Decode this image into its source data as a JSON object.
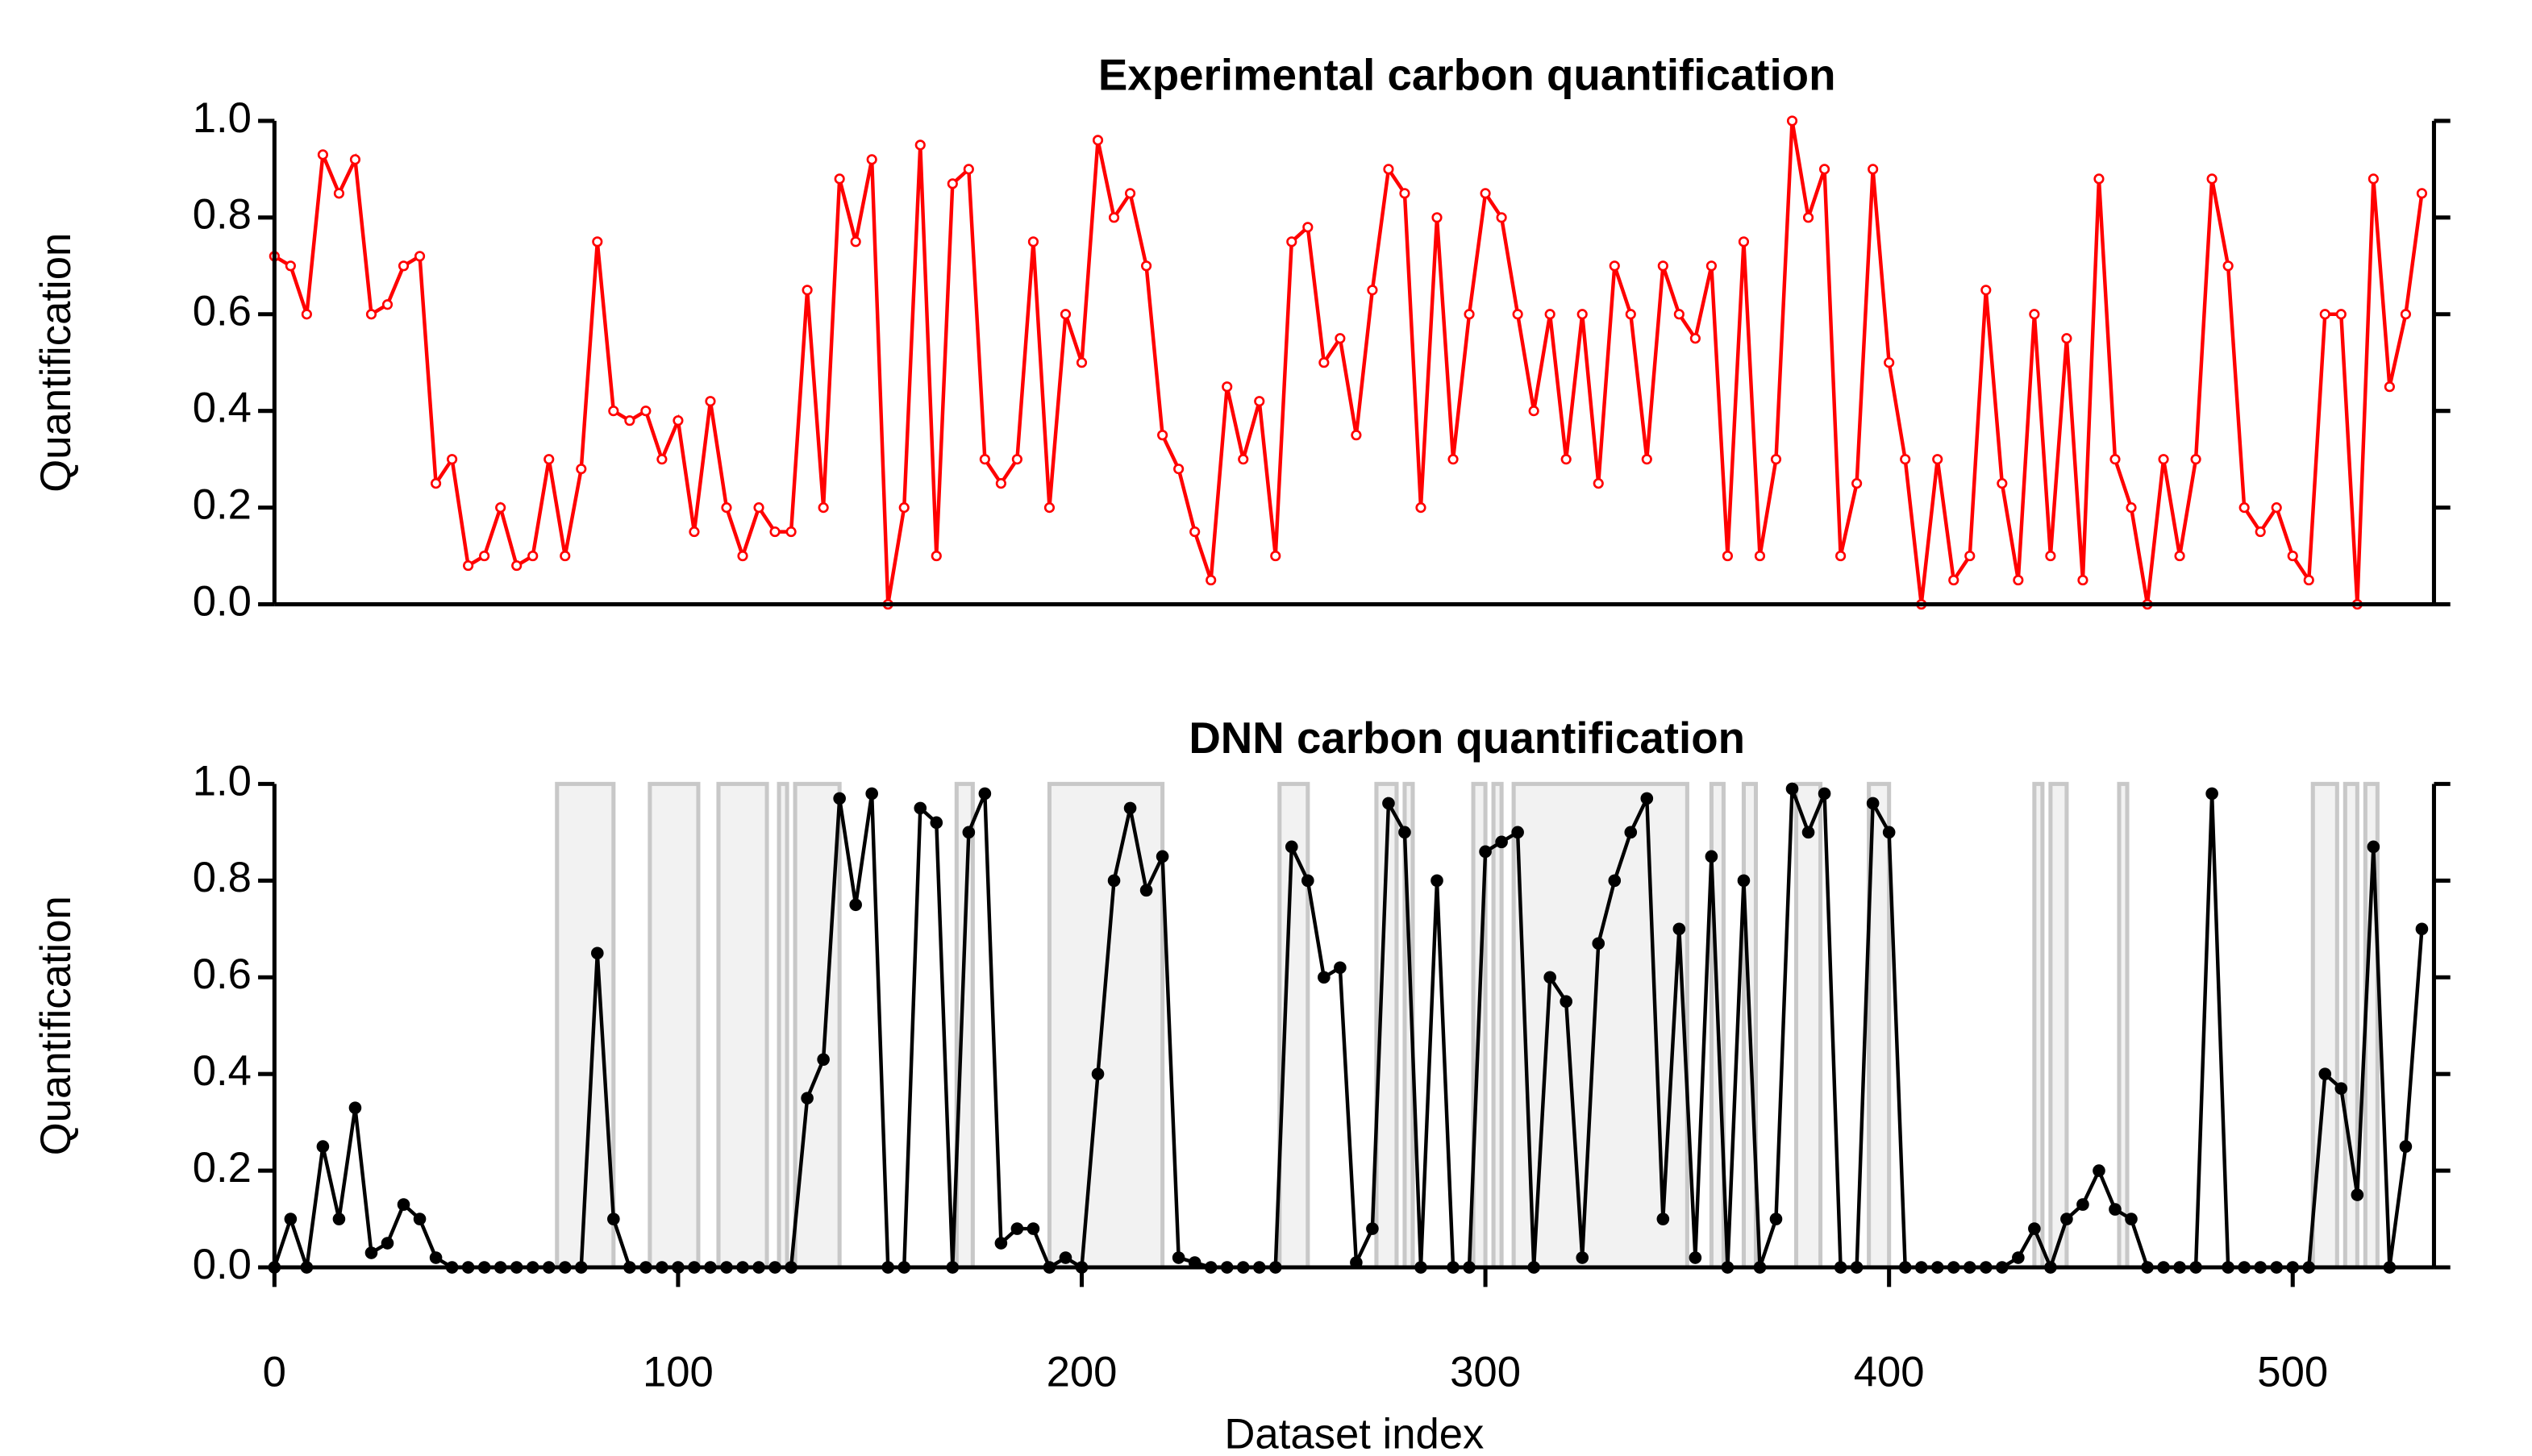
{
  "chart_data": [
    {
      "type": "line",
      "title": "Experimental carbon quantification",
      "ylabel": "Quantification",
      "xlim": [
        0,
        535
      ],
      "ylim": [
        0,
        1
      ],
      "yticks": [
        {
          "value": 0,
          "label": "0.0"
        },
        {
          "value": 0.2,
          "label": "0.2"
        },
        {
          "value": 0.4,
          "label": "0.4"
        },
        {
          "value": 0.6,
          "label": "0.6"
        },
        {
          "value": 0.8,
          "label": "0.8"
        },
        {
          "value": 1,
          "label": "1.0"
        }
      ],
      "x": [
        0,
        4,
        8,
        12,
        16,
        20,
        24,
        28,
        32,
        36,
        40,
        44,
        48,
        52,
        56,
        60,
        64,
        68,
        72,
        76,
        80,
        84,
        88,
        92,
        96,
        100,
        104,
        108,
        112,
        116,
        120,
        124,
        128,
        132,
        136,
        140,
        144,
        148,
        152,
        156,
        160,
        164,
        168,
        172,
        176,
        180,
        184,
        188,
        192,
        196,
        200,
        204,
        208,
        212,
        216,
        220,
        224,
        228,
        232,
        236,
        240,
        244,
        248,
        252,
        256,
        260,
        264,
        268,
        272,
        276,
        280,
        284,
        288,
        292,
        296,
        300,
        304,
        308,
        312,
        316,
        320,
        324,
        328,
        332,
        336,
        340,
        344,
        348,
        352,
        356,
        360,
        364,
        368,
        372,
        376,
        380,
        384,
        388,
        392,
        396,
        400,
        404,
        408,
        412,
        416,
        420,
        424,
        428,
        432,
        436,
        440,
        444,
        448,
        452,
        456,
        460,
        464,
        468,
        472,
        476,
        480,
        484,
        488,
        492,
        496,
        500,
        504,
        508,
        512,
        516,
        520,
        524,
        528,
        532
      ],
      "series": [
        {
          "color": "#ff0000",
          "marker": "hollow",
          "values": [
            0.72,
            0.7,
            0.6,
            0.93,
            0.85,
            0.92,
            0.6,
            0.62,
            0.7,
            0.72,
            0.25,
            0.3,
            0.08,
            0.1,
            0.2,
            0.08,
            0.1,
            0.3,
            0.1,
            0.28,
            0.75,
            0.4,
            0.38,
            0.4,
            0.3,
            0.38,
            0.15,
            0.42,
            0.2,
            0.1,
            0.2,
            0.15,
            0.15,
            0.65,
            0.2,
            0.88,
            0.75,
            0.92,
            0,
            0.2,
            0.95,
            0.1,
            0.87,
            0.9,
            0.3,
            0.25,
            0.3,
            0.75,
            0.2,
            0.6,
            0.5,
            0.96,
            0.8,
            0.85,
            0.7,
            0.35,
            0.28,
            0.15,
            0.05,
            0.45,
            0.3,
            0.42,
            0.1,
            0.75,
            0.78,
            0.5,
            0.55,
            0.35,
            0.65,
            0.9,
            0.85,
            0.2,
            0.8,
            0.3,
            0.6,
            0.85,
            0.8,
            0.6,
            0.4,
            0.6,
            0.3,
            0.6,
            0.25,
            0.7,
            0.6,
            0.3,
            0.7,
            0.6,
            0.55,
            0.7,
            0.1,
            0.75,
            0.1,
            0.3,
            1,
            0.8,
            0.9,
            0.1,
            0.25,
            0.9,
            0.5,
            0.3,
            0,
            0.3,
            0.05,
            0.1,
            0.65,
            0.25,
            0.05,
            0.6,
            0.1,
            0.55,
            0.05,
            0.88,
            0.3,
            0.2,
            0,
            0.3,
            0.1,
            0.3,
            0.88,
            0.7,
            0.2,
            0.15,
            0.2,
            0.1,
            0.05,
            0.6,
            0.6,
            0,
            0.88,
            0.45,
            0.6,
            0.85
          ]
        }
      ]
    },
    {
      "type": "line",
      "title": "DNN carbon quantification",
      "ylabel": "Quantification",
      "xlabel": "Dataset index",
      "xlim": [
        0,
        535
      ],
      "ylim": [
        0,
        1
      ],
      "xticks": [
        0,
        100,
        200,
        300,
        400,
        500
      ],
      "yticks": [
        {
          "value": 0,
          "label": "0.0"
        },
        {
          "value": 0.2,
          "label": "0.2"
        },
        {
          "value": 0.4,
          "label": "0.4"
        },
        {
          "value": 0.6,
          "label": "0.6"
        },
        {
          "value": 0.8,
          "label": "0.8"
        },
        {
          "value": 1,
          "label": "1.0"
        }
      ],
      "shaded_color": "#f2f2f2",
      "shaded_edge": "#c8c8c8",
      "shaded_intervals": [
        [
          70,
          84
        ],
        [
          93,
          105
        ],
        [
          110,
          122
        ],
        [
          125,
          127
        ],
        [
          129,
          140
        ],
        [
          169,
          173
        ],
        [
          192,
          220
        ],
        [
          249,
          256
        ],
        [
          273,
          278
        ],
        [
          280,
          282
        ],
        [
          297,
          300
        ],
        [
          302,
          304
        ],
        [
          307,
          350
        ],
        [
          356,
          359
        ],
        [
          364,
          367
        ],
        [
          377,
          383
        ],
        [
          395,
          400
        ],
        [
          436,
          438
        ],
        [
          440,
          444
        ],
        [
          457,
          459
        ],
        [
          505,
          511
        ],
        [
          513,
          516
        ],
        [
          518,
          521
        ]
      ],
      "x": [
        0,
        4,
        8,
        12,
        16,
        20,
        24,
        28,
        32,
        36,
        40,
        44,
        48,
        52,
        56,
        60,
        64,
        68,
        72,
        76,
        80,
        84,
        88,
        92,
        96,
        100,
        104,
        108,
        112,
        116,
        120,
        124,
        128,
        132,
        136,
        140,
        144,
        148,
        152,
        156,
        160,
        164,
        168,
        172,
        176,
        180,
        184,
        188,
        192,
        196,
        200,
        204,
        208,
        212,
        216,
        220,
        224,
        228,
        232,
        236,
        240,
        244,
        248,
        252,
        256,
        260,
        264,
        268,
        272,
        276,
        280,
        284,
        288,
        292,
        296,
        300,
        304,
        308,
        312,
        316,
        320,
        324,
        328,
        332,
        336,
        340,
        344,
        348,
        352,
        356,
        360,
        364,
        368,
        372,
        376,
        380,
        384,
        388,
        392,
        396,
        400,
        404,
        408,
        412,
        416,
        420,
        424,
        428,
        432,
        436,
        440,
        444,
        448,
        452,
        456,
        460,
        464,
        468,
        472,
        476,
        480,
        484,
        488,
        492,
        496,
        500,
        504,
        508,
        512,
        516,
        520,
        524,
        528,
        532
      ],
      "series": [
        {
          "color": "#000000",
          "marker": "filled",
          "values": [
            0,
            0.1,
            0,
            0.25,
            0.1,
            0.33,
            0.03,
            0.05,
            0.13,
            0.1,
            0.02,
            0,
            0,
            0,
            0,
            0,
            0,
            0,
            0,
            0,
            0.65,
            0.1,
            0,
            0,
            0,
            0,
            0,
            0,
            0,
            0,
            0,
            0,
            0,
            0.35,
            0.43,
            0.97,
            0.75,
            0.98,
            0,
            0,
            0.95,
            0.92,
            0,
            0.9,
            0.98,
            0.05,
            0.08,
            0.08,
            0,
            0.02,
            0,
            0.4,
            0.8,
            0.95,
            0.78,
            0.85,
            0.02,
            0.01,
            0,
            0,
            0,
            0,
            0,
            0.87,
            0.8,
            0.6,
            0.62,
            0.01,
            0.08,
            0.96,
            0.9,
            0,
            0.8,
            0,
            0,
            0.86,
            0.88,
            0.9,
            0,
            0.6,
            0.55,
            0.02,
            0.67,
            0.8,
            0.9,
            0.97,
            0.1,
            0.7,
            0.02,
            0.85,
            0,
            0.8,
            0,
            0.1,
            0.99,
            0.9,
            0.98,
            0,
            0,
            0.96,
            0.9,
            0,
            0,
            0,
            0,
            0,
            0,
            0,
            0.02,
            0.08,
            0,
            0.1,
            0.13,
            0.2,
            0.12,
            0.1,
            0,
            0,
            0,
            0,
            0.98,
            0,
            0,
            0,
            0,
            0,
            0,
            0.4,
            0.37,
            0.15,
            0.87,
            0,
            0.25,
            0.7
          ]
        }
      ]
    }
  ]
}
